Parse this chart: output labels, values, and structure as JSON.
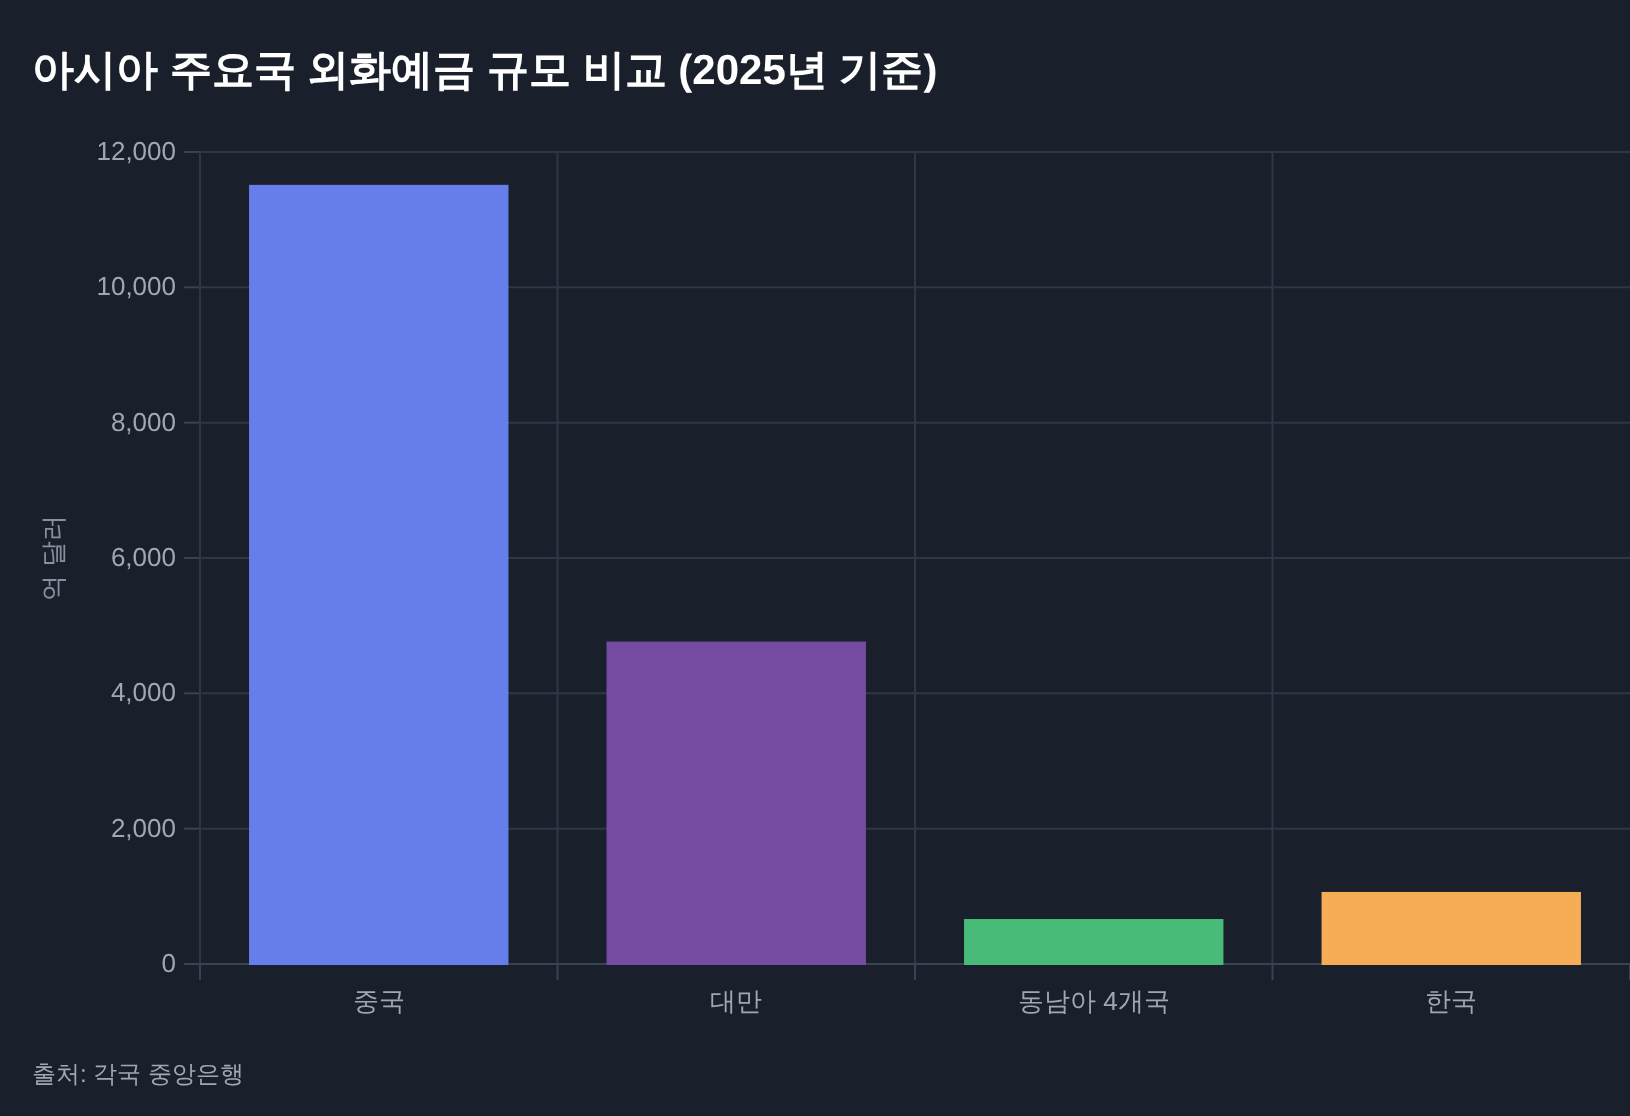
{
  "chart_data": {
    "type": "bar",
    "title": "아시아 주요국 외화예금 규모 비교 (2025년 기준)",
    "ylabel": "억 달러",
    "categories": [
      "중국",
      "대만",
      "동남아 4개국",
      "한국"
    ],
    "values": [
      11500,
      4750,
      650,
      1050
    ],
    "colors": [
      "#667eea",
      "#764ba2",
      "#48bb78",
      "#f6ad55"
    ],
    "ylim": [
      0,
      12000
    ],
    "yticks": [
      {
        "value": 0,
        "label": "0"
      },
      {
        "value": 2000,
        "label": "2,000"
      },
      {
        "value": 4000,
        "label": "4,000"
      },
      {
        "value": 6000,
        "label": "6,000"
      },
      {
        "value": 8000,
        "label": "8,000"
      },
      {
        "value": 10000,
        "label": "10,000"
      },
      {
        "value": 12000,
        "label": "12,000"
      }
    ],
    "grid": true,
    "annotations": [
      "출처: 각국 중앙은행"
    ]
  }
}
